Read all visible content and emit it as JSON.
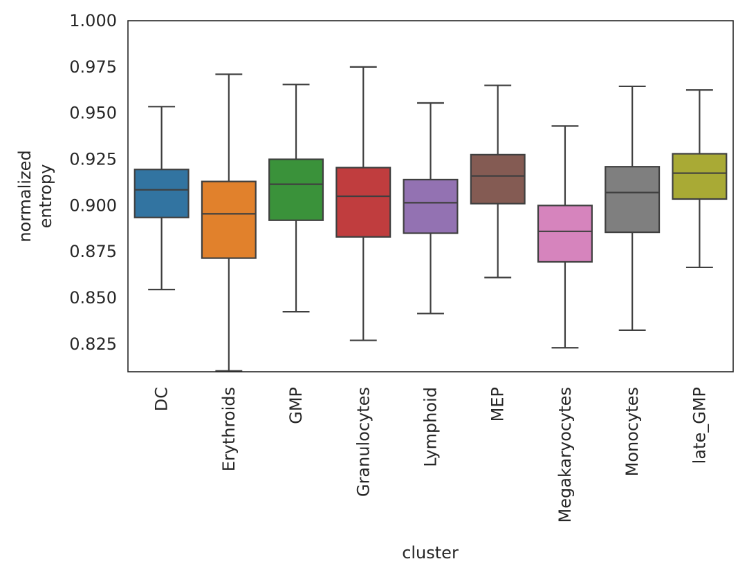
{
  "chart_data": {
    "type": "box",
    "title": "",
    "xlabel": "cluster",
    "ylabel": [
      "normalized",
      "entropy"
    ],
    "ylim": [
      0.81,
      1.0
    ],
    "yticks": [
      0.825,
      0.85,
      0.875,
      0.9,
      0.925,
      0.95,
      0.975,
      1.0
    ],
    "ytick_labels": [
      "0.825",
      "0.850",
      "0.875",
      "0.900",
      "0.925",
      "0.950",
      "0.975",
      "1.000"
    ],
    "grid": false,
    "categories": [
      "DC",
      "Erythroids",
      "GMP",
      "Granulocytes",
      "Lymphoid",
      "MEP",
      "Megakaryocytes",
      "Monocytes",
      "late_GMP"
    ],
    "colors": [
      "#3274a1",
      "#e1812c",
      "#3a923a",
      "#c03d3e",
      "#9372b2",
      "#845b53",
      "#d684bd",
      "#7f7f7f",
      "#a9aa35"
    ],
    "line_color": "#3f3f3f",
    "boxes": [
      {
        "whisker_low": 0.8545,
        "q1": 0.8935,
        "median": 0.9085,
        "q3": 0.9195,
        "whisker_high": 0.9535
      },
      {
        "whisker_low": 0.8105,
        "q1": 0.8715,
        "median": 0.8955,
        "q3": 0.913,
        "whisker_high": 0.971
      },
      {
        "whisker_low": 0.8425,
        "q1": 0.892,
        "median": 0.9115,
        "q3": 0.925,
        "whisker_high": 0.9655
      },
      {
        "whisker_low": 0.827,
        "q1": 0.883,
        "median": 0.905,
        "q3": 0.9205,
        "whisker_high": 0.975
      },
      {
        "whisker_low": 0.8415,
        "q1": 0.885,
        "median": 0.9015,
        "q3": 0.914,
        "whisker_high": 0.9555
      },
      {
        "whisker_low": 0.861,
        "q1": 0.901,
        "median": 0.916,
        "q3": 0.9275,
        "whisker_high": 0.965
      },
      {
        "whisker_low": 0.823,
        "q1": 0.8695,
        "median": 0.886,
        "q3": 0.9,
        "whisker_high": 0.943
      },
      {
        "whisker_low": 0.8325,
        "q1": 0.8855,
        "median": 0.907,
        "q3": 0.921,
        "whisker_high": 0.9645
      },
      {
        "whisker_low": 0.8665,
        "q1": 0.9035,
        "median": 0.9175,
        "q3": 0.928,
        "whisker_high": 0.9625
      }
    ]
  }
}
